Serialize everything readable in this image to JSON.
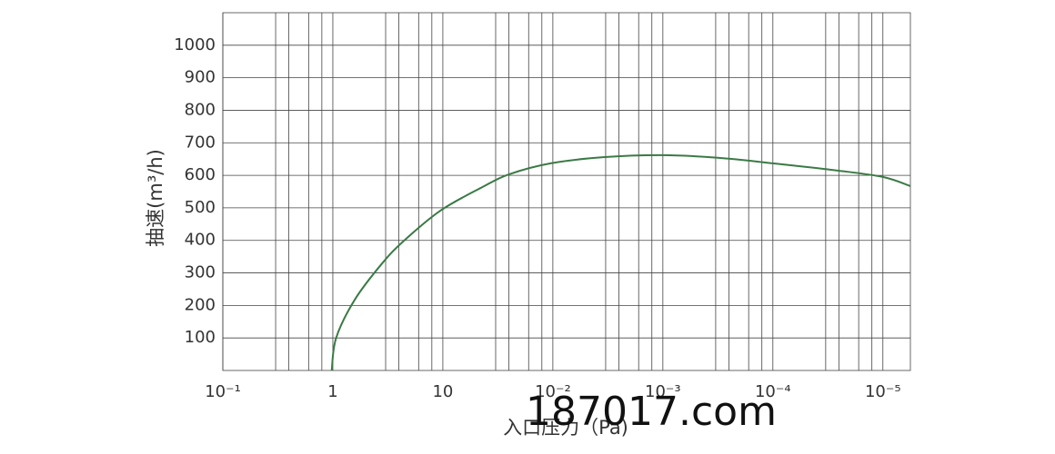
{
  "chart_data": {
    "type": "line",
    "ylabel": "抽速(m³/h)",
    "xlabel": "入口压力（Pa)",
    "watermark": "187017.com",
    "xlim": [
      0,
      6.25
    ],
    "ylim": [
      0,
      1100
    ],
    "xticks": [
      {
        "value": 0,
        "label": "10⁻¹"
      },
      {
        "value": 1,
        "label": "1"
      },
      {
        "value": 2,
        "label": "10"
      },
      {
        "value": 3,
        "label": "10⁻²"
      },
      {
        "value": 4,
        "label": "10⁻³"
      },
      {
        "value": 5,
        "label": "10⁻⁴"
      },
      {
        "value": 6,
        "label": "10⁻⁵"
      }
    ],
    "xminorticks": [
      0.48,
      0.6,
      0.78,
      0.9,
      1.48,
      1.6,
      1.78,
      1.9,
      2.48,
      2.6,
      2.78,
      2.9,
      3.48,
      3.6,
      3.78,
      3.9,
      4.48,
      4.6,
      4.78,
      4.9,
      5.48,
      5.6,
      5.78,
      5.9
    ],
    "yticks": [
      100,
      200,
      300,
      400,
      500,
      600,
      700,
      800,
      900,
      1000
    ],
    "grid": true,
    "series": [
      {
        "name": "抽速",
        "color": "#3a7a45",
        "x": [
          0.99,
          1.03,
          1.2,
          1.45,
          1.65,
          1.98,
          2.36,
          2.6,
          2.98,
          3.47,
          4.0,
          4.5,
          5.0,
          5.58,
          6.0,
          6.25
        ],
        "values": [
          0,
          100,
          218,
          330,
          400,
          492,
          564,
          603,
          637,
          656,
          662,
          654,
          637,
          615,
          595,
          567
        ]
      }
    ]
  }
}
